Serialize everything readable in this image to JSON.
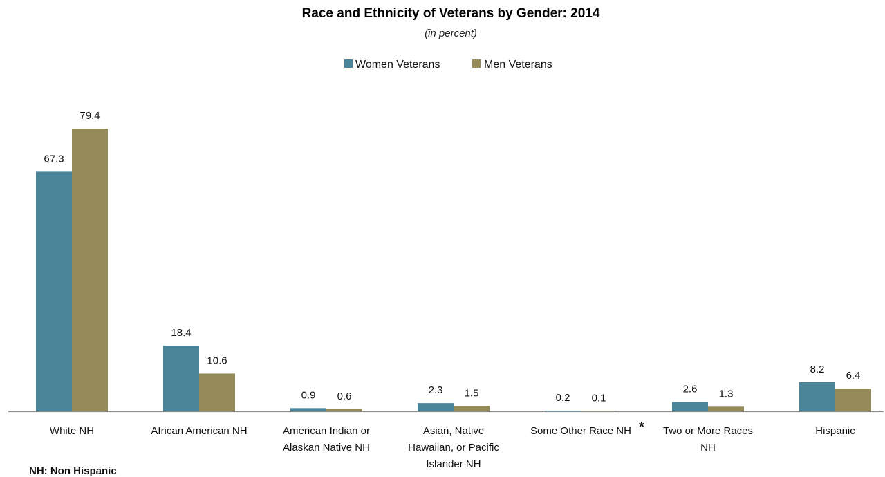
{
  "chart_data": {
    "type": "bar",
    "title": "Race and Ethnicity of Veterans by Gender:  2014",
    "subtitle": "(in percent)",
    "categories": [
      [
        "White NH"
      ],
      [
        "African American NH"
      ],
      [
        "American Indian or",
        "Alaskan Native NH"
      ],
      [
        "Asian, Native",
        "Hawaiian, or Pacific",
        "Islander NH"
      ],
      [
        "Some Other Race NH"
      ],
      [
        "Two or More Races",
        "NH"
      ],
      [
        "Hispanic"
      ]
    ],
    "series": [
      {
        "name": "Women Veterans",
        "color": "#4a8499",
        "values": [
          67.3,
          18.4,
          0.9,
          2.3,
          0.2,
          2.6,
          8.2
        ]
      },
      {
        "name": "Men Veterans",
        "color": "#958b5a",
        "values": [
          79.4,
          10.6,
          0.6,
          1.5,
          0.1,
          1.3,
          6.4
        ]
      }
    ],
    "ylim": [
      0,
      100
    ],
    "grid": false,
    "legend": "top-center",
    "annotation_marker": "*",
    "footnote": "NH:  Non Hispanic"
  }
}
